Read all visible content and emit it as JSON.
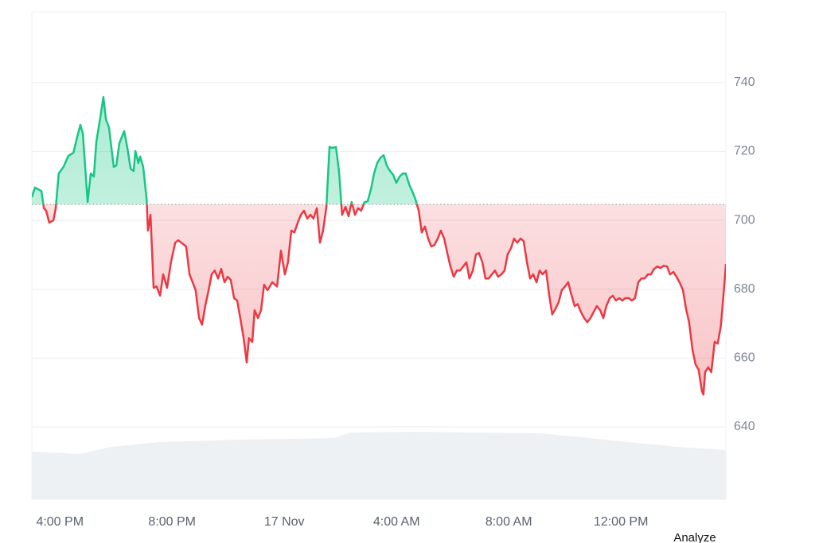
{
  "chart_data": {
    "type": "line",
    "xlim": [
      15,
      39.74
    ],
    "ylim": [
      619,
      760.5
    ],
    "xticks": [
      {
        "value": 16,
        "label": "4:00 PM"
      },
      {
        "value": 20,
        "label": "8:00 PM"
      },
      {
        "value": 24,
        "label": "17 Nov"
      },
      {
        "value": 28,
        "label": "4:00 AM"
      },
      {
        "value": 32,
        "label": "8:00 AM"
      },
      {
        "value": 36,
        "label": "12:00 PM"
      }
    ],
    "yticks": [
      640,
      660,
      680,
      700,
      720,
      740
    ],
    "grid": true,
    "baseline": 704.6,
    "up_color": "#16c784",
    "down_color": "#ea3943",
    "x": [
      15.0,
      15.11,
      15.34,
      15.43,
      15.51,
      15.62,
      15.77,
      15.85,
      15.96,
      16.13,
      16.3,
      16.48,
      16.62,
      16.73,
      16.82,
      16.99,
      17.1,
      17.21,
      17.3,
      17.44,
      17.55,
      17.64,
      17.75,
      17.92,
      18.01,
      18.12,
      18.29,
      18.4,
      18.52,
      18.63,
      18.69,
      18.8,
      18.86,
      18.97,
      19.09,
      19.14,
      19.23,
      19.34,
      19.45,
      19.57,
      19.68,
      19.82,
      19.96,
      20.11,
      20.22,
      20.33,
      20.5,
      20.62,
      20.73,
      20.84,
      20.96,
      21.07,
      21.18,
      21.3,
      21.41,
      21.52,
      21.64,
      21.75,
      21.87,
      21.98,
      22.09,
      22.21,
      22.32,
      22.43,
      22.55,
      22.66,
      22.74,
      22.86,
      22.94,
      23.06,
      23.17,
      23.28,
      23.4,
      23.57,
      23.74,
      23.88,
      24.02,
      24.13,
      24.25,
      24.36,
      24.48,
      24.59,
      24.7,
      24.82,
      24.93,
      25.04,
      25.16,
      25.27,
      25.38,
      25.5,
      25.61,
      25.72,
      25.84,
      25.95,
      26.06,
      26.18,
      26.29,
      26.4,
      26.52,
      26.63,
      26.74,
      26.86,
      26.97,
      27.09,
      27.2,
      27.31,
      27.43,
      27.54,
      27.65,
      27.77,
      27.88,
      27.99,
      28.11,
      28.22,
      28.33,
      28.45,
      28.56,
      28.67,
      28.79,
      28.9,
      29.01,
      29.13,
      29.24,
      29.35,
      29.47,
      29.58,
      29.7,
      29.81,
      29.92,
      30.04,
      30.15,
      30.26,
      30.38,
      30.49,
      30.6,
      30.72,
      30.83,
      30.94,
      31.06,
      31.17,
      31.28,
      31.4,
      31.51,
      31.62,
      31.74,
      31.85,
      31.96,
      32.08,
      32.19,
      32.3,
      32.42,
      32.53,
      32.65,
      32.76,
      32.87,
      32.99,
      33.1,
      33.21,
      33.33,
      33.44,
      33.55,
      33.67,
      33.78,
      33.89,
      34.01,
      34.12,
      34.23,
      34.35,
      34.46,
      34.57,
      34.69,
      34.8,
      34.91,
      35.03,
      35.14,
      35.26,
      35.37,
      35.48,
      35.6,
      35.71,
      35.82,
      35.94,
      36.05,
      36.16,
      36.28,
      36.39,
      36.5,
      36.62,
      36.73,
      36.84,
      36.96,
      37.07,
      37.18,
      37.3,
      37.41,
      37.52,
      37.64,
      37.75,
      37.87,
      37.98,
      38.09,
      38.21,
      38.32,
      38.43,
      38.55,
      38.66,
      38.77,
      38.89,
      38.94,
      39.0,
      39.11,
      39.22,
      39.34,
      39.45,
      39.56,
      39.68,
      39.74
    ],
    "values": [
      706.7,
      709.5,
      708.5,
      703.5,
      702.8,
      699.3,
      700,
      703.5,
      713.6,
      715.5,
      718.7,
      719.6,
      724.3,
      727.7,
      725.2,
      705.3,
      713.6,
      712.7,
      722.9,
      729.8,
      735.8,
      729.3,
      727.0,
      715.5,
      715.9,
      722.4,
      725.9,
      721.3,
      715.0,
      714.3,
      720.1,
      716.6,
      718.5,
      715.5,
      706.2,
      697.0,
      701.6,
      680.4,
      680.8,
      678.1,
      684.3,
      680.4,
      687.8,
      693.5,
      694.2,
      693.5,
      692.4,
      684.3,
      682.0,
      679.7,
      671.6,
      669.7,
      675.1,
      679.7,
      684.3,
      685.4,
      683.1,
      685.9,
      682.0,
      683.6,
      682.7,
      677.4,
      676.7,
      671.6,
      665.8,
      658.7,
      665.8,
      664.7,
      673.9,
      671.6,
      673.9,
      681.3,
      679.7,
      682.0,
      680.8,
      691.2,
      684.3,
      687.8,
      697.0,
      696.5,
      699.3,
      701.6,
      702.8,
      700.5,
      701.6,
      700.5,
      703.5,
      693.5,
      697.0,
      703.9,
      721.3,
      721.0,
      721.3,
      714.3,
      701.6,
      703.9,
      701.2,
      705.3,
      701.6,
      703.5,
      702.8,
      705.3,
      705.5,
      709.0,
      713.6,
      716.6,
      718.2,
      718.9,
      715.9,
      714.3,
      713.2,
      710.9,
      712.7,
      713.6,
      713.6,
      710.4,
      708.5,
      706.2,
      702.8,
      696.5,
      698.2,
      694.7,
      692.4,
      692.8,
      694.7,
      697.0,
      694.7,
      690.5,
      686.6,
      683.6,
      685.4,
      685.4,
      686.6,
      687.8,
      683.1,
      685.4,
      690.1,
      690.5,
      687.8,
      683.1,
      683.1,
      684.3,
      685.4,
      683.6,
      684.3,
      685.4,
      690.1,
      691.9,
      694.7,
      693.5,
      694.7,
      694.0,
      687.8,
      683.1,
      684.3,
      682.0,
      685.4,
      684.3,
      685.4,
      678.5,
      672.7,
      674.4,
      676.2,
      679.7,
      680.8,
      682.0,
      678.5,
      675.1,
      675.7,
      673.4,
      671.6,
      670.4,
      671.6,
      673.4,
      675.1,
      673.9,
      671.6,
      675.1,
      677.4,
      678.1,
      676.7,
      677.4,
      676.7,
      677.4,
      677.4,
      676.7,
      677.4,
      682.0,
      683.1,
      683.1,
      684.3,
      684.3,
      685.9,
      686.6,
      686.1,
      686.8,
      686.6,
      684.3,
      685.0,
      683.6,
      682.0,
      679.7,
      674.4,
      670.4,
      662.4,
      658.2,
      656.6,
      650.3,
      649.4,
      655.9,
      657.3,
      655.9,
      664.7,
      664.2,
      669.3,
      680.8,
      687.3
    ]
  },
  "action_label": "Analyze"
}
